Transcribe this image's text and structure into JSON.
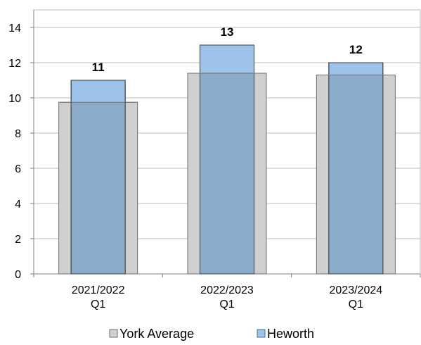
{
  "chart_data": {
    "type": "bar",
    "categories": [
      [
        "2021/2022",
        "Q1"
      ],
      [
        "2022/2023",
        "Q1"
      ],
      [
        "2023/2024",
        "Q1"
      ]
    ],
    "series": [
      {
        "name": "York Average",
        "values": [
          9.75,
          11.4,
          11.3
        ],
        "color": "#d0d0d0",
        "stroke": "#6f6f6f"
      },
      {
        "name": "Heworth",
        "values": [
          11,
          13,
          12
        ],
        "color": "#9ec3ea",
        "stroke": "#3c3c3c",
        "labels": [
          "11",
          "13",
          "12"
        ]
      }
    ],
    "yticks": [
      "0",
      "2",
      "4",
      "6",
      "8",
      "10",
      "12",
      "14"
    ],
    "ylim": [
      0,
      15
    ],
    "grid": true,
    "legend_position": "bottom",
    "overlap_color": "#8aabc9"
  }
}
